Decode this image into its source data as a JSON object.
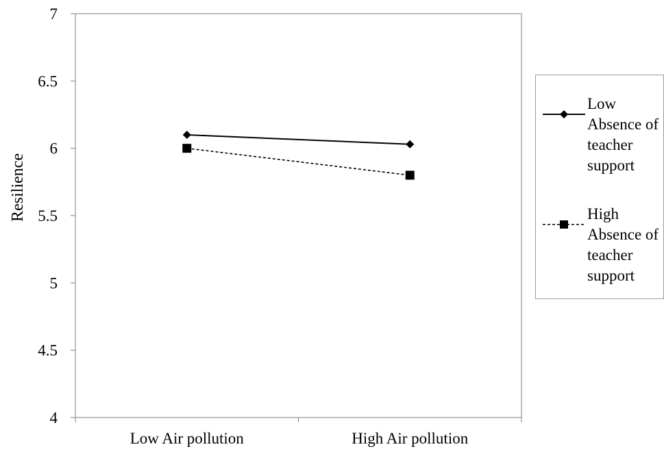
{
  "chart_data": {
    "type": "line",
    "categories": [
      "Low Air pollution",
      "High Air pollution"
    ],
    "series": [
      {
        "name": "Low Absence of teacher support",
        "values": [
          6.1,
          6.03
        ],
        "marker": "diamond",
        "line_style": "solid",
        "color": "#000000"
      },
      {
        "name": "High Absence of teacher support",
        "values": [
          6.0,
          5.8
        ],
        "marker": "square",
        "line_style": "dashed",
        "color": "#000000"
      }
    ],
    "title": "",
    "xlabel": "",
    "ylabel": "Resilience",
    "ylim": [
      4,
      7
    ],
    "yticks": [
      "4",
      "4.5",
      "5",
      "5.5",
      "6",
      "6.5",
      "7"
    ],
    "grid": false,
    "legend_position": "right"
  }
}
